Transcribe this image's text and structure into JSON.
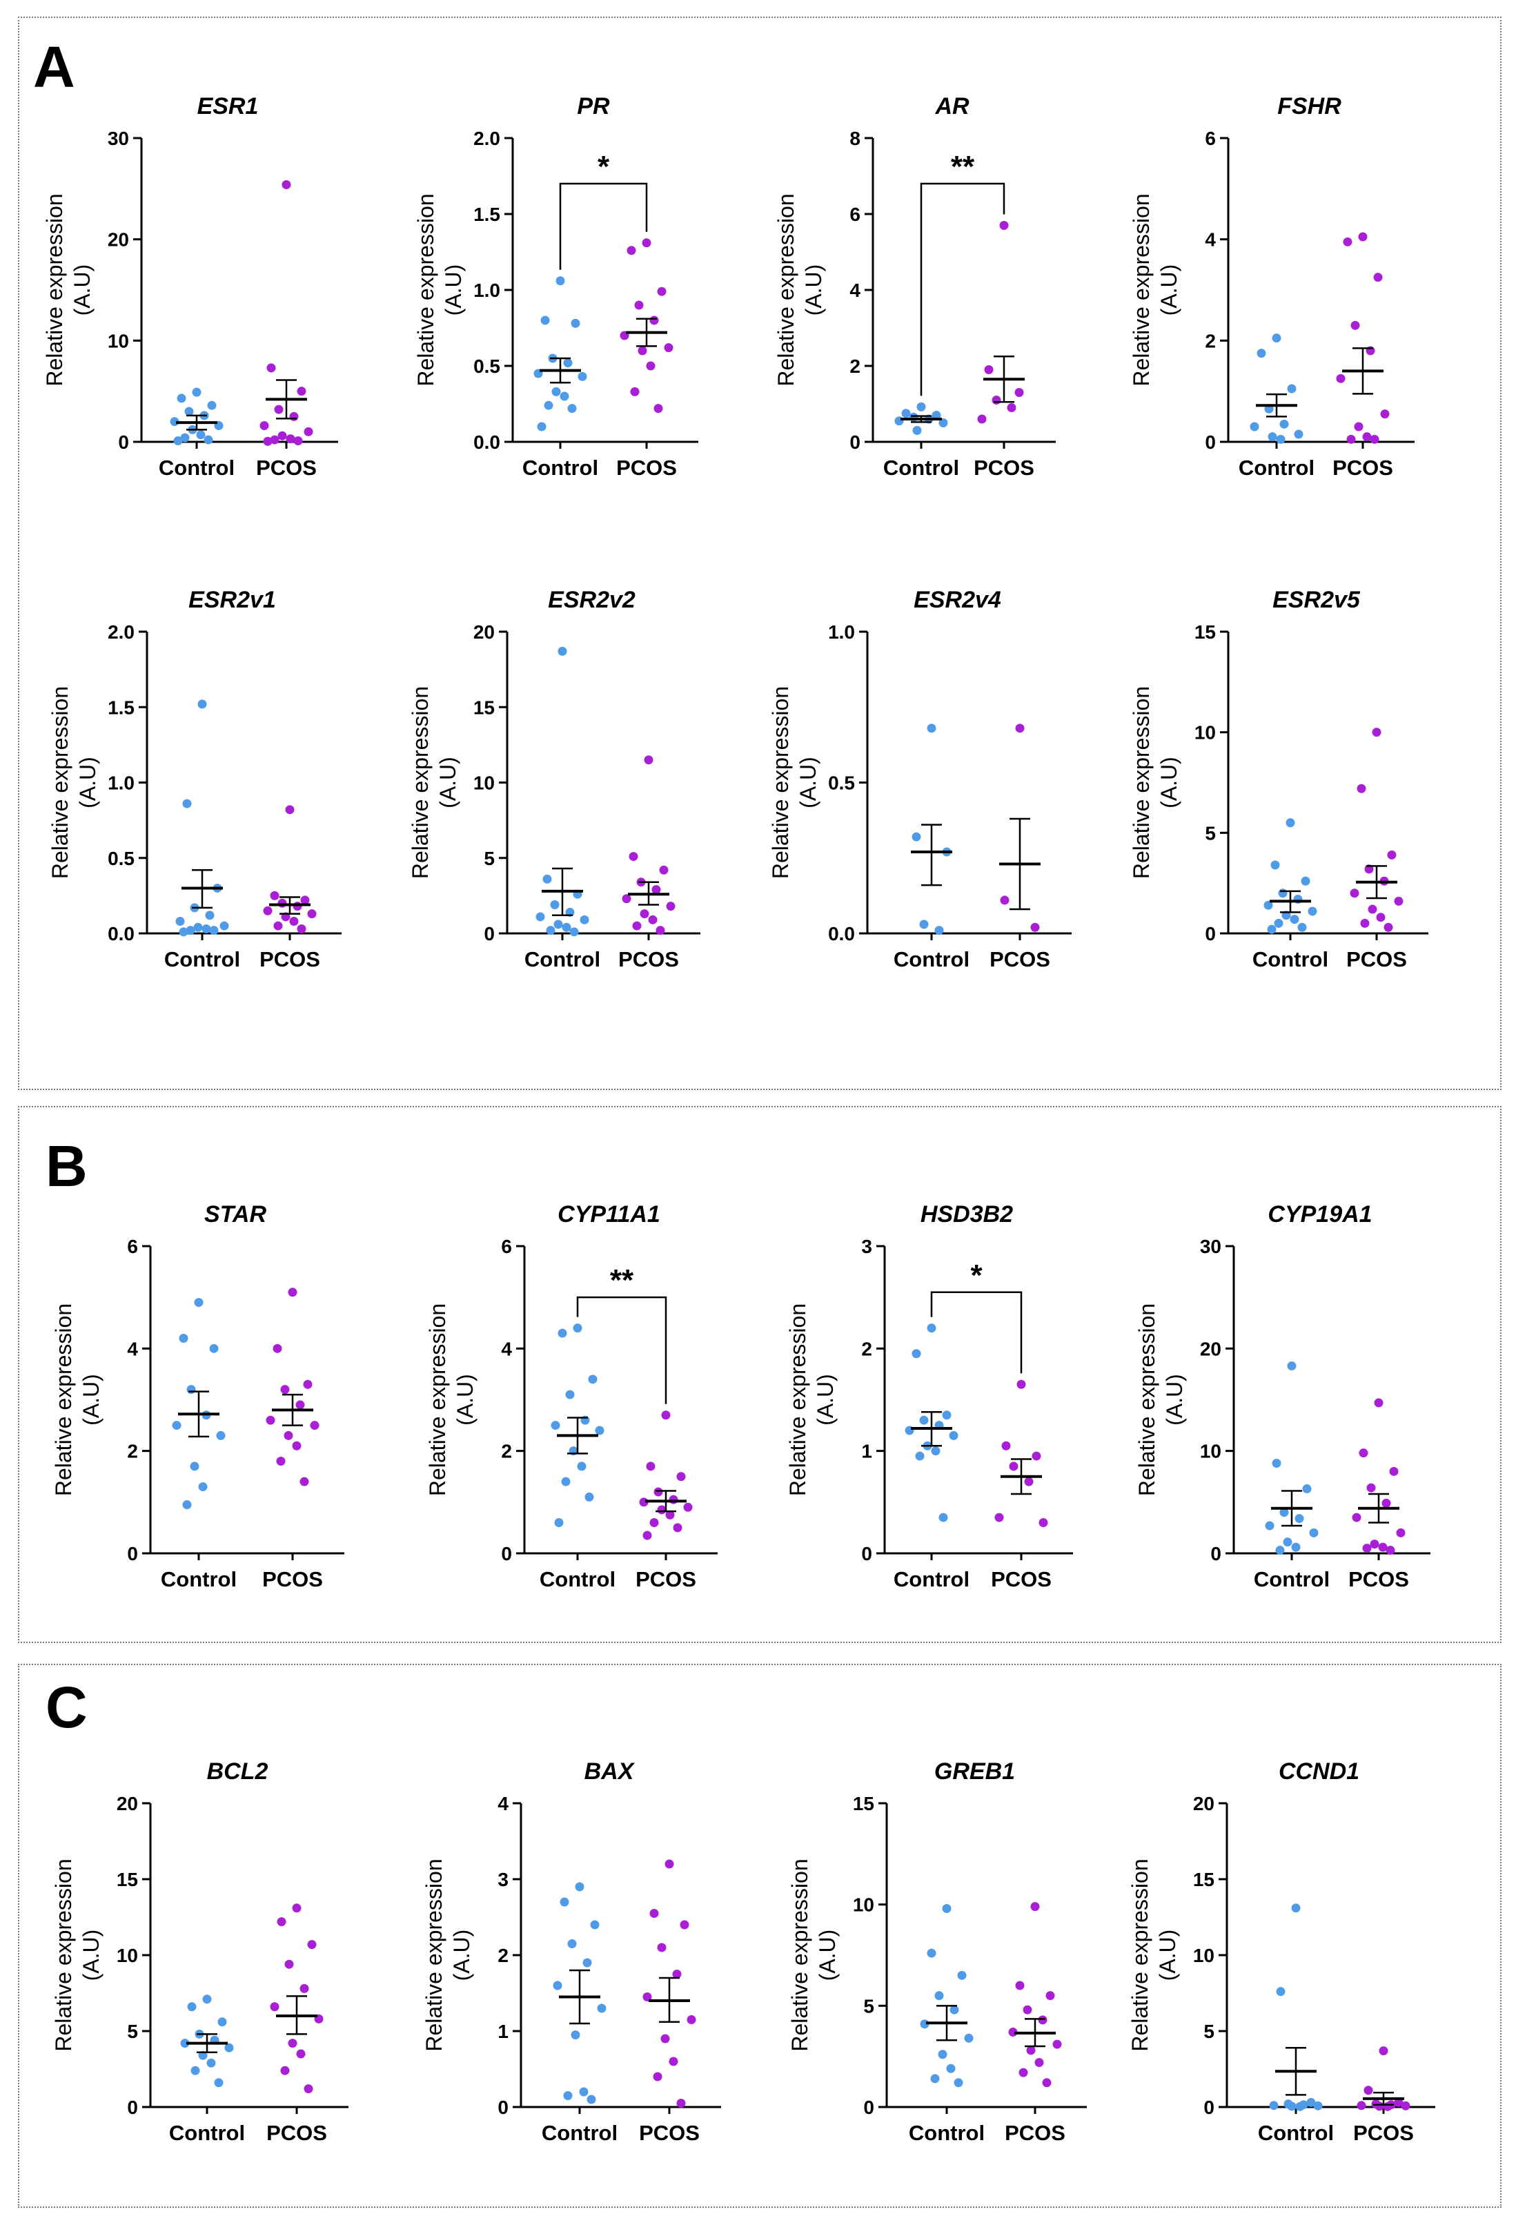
{
  "colors": {
    "control": "#4f9be8",
    "pcos": "#a81fd6",
    "axis": "#000000"
  },
  "y_axis_title_line1": "Relative expression",
  "y_axis_title_line2": "(A.U)",
  "panels": [
    {
      "letter": "A"
    },
    {
      "letter": "B"
    },
    {
      "letter": "C"
    }
  ],
  "chart_data": [
    {
      "type": "scatter",
      "panel": "A",
      "title": "ESR1",
      "categories": [
        "Control",
        "PCOS"
      ],
      "ylim": [
        0,
        30
      ],
      "yticks": [
        0,
        10,
        20,
        30
      ],
      "series": [
        {
          "name": "Control",
          "points": [
            4.9,
            4.3,
            3.6,
            3.0,
            2.6,
            2.0,
            1.6,
            1.2,
            0.7,
            0.4,
            0.2,
            0.1
          ],
          "mean": 1.9,
          "sem_low": 1.2,
          "sem_high": 2.6
        },
        {
          "name": "PCOS",
          "points": [
            25.4,
            7.3,
            5.0,
            3.2,
            2.5,
            1.6,
            1.0,
            0.6,
            0.3,
            0.2,
            0.1,
            0.05
          ],
          "mean": 4.2,
          "sem_low": 2.3,
          "sem_high": 6.1
        }
      ],
      "significance": null
    },
    {
      "type": "scatter",
      "panel": "A",
      "title": "PR",
      "categories": [
        "Control",
        "PCOS"
      ],
      "ylim": [
        0,
        2.0
      ],
      "yticks": [
        "0.0",
        "0.5",
        "1.0",
        "1.5",
        "2.0"
      ],
      "series": [
        {
          "name": "Control",
          "points": [
            1.06,
            0.8,
            0.78,
            0.55,
            0.52,
            0.45,
            0.43,
            0.33,
            0.3,
            0.24,
            0.22,
            0.1
          ],
          "mean": 0.47,
          "sem_low": 0.39,
          "sem_high": 0.55
        },
        {
          "name": "PCOS",
          "points": [
            1.31,
            1.26,
            0.99,
            0.9,
            0.8,
            0.7,
            0.62,
            0.6,
            0.5,
            0.33,
            0.22
          ],
          "mean": 0.72,
          "sem_low": 0.63,
          "sem_high": 0.81
        }
      ],
      "significance": {
        "label": "*",
        "level": 1.7
      }
    },
    {
      "type": "scatter",
      "panel": "A",
      "title": "AR",
      "categories": [
        "Control",
        "PCOS"
      ],
      "ylim": [
        0,
        8
      ],
      "yticks": [
        0,
        2,
        4,
        6,
        8
      ],
      "series": [
        {
          "name": "Control",
          "points": [
            0.92,
            0.75,
            0.7,
            0.65,
            0.6,
            0.55,
            0.5,
            0.3
          ],
          "mean": 0.6,
          "sem_low": 0.52,
          "sem_high": 0.68
        },
        {
          "name": "PCOS",
          "points": [
            5.7,
            1.9,
            1.3,
            1.1,
            0.9,
            0.6
          ],
          "mean": 1.65,
          "sem_low": 1.05,
          "sem_high": 2.25
        }
      ],
      "significance": {
        "label": "**",
        "level": 6.8
      }
    },
    {
      "type": "scatter",
      "panel": "A",
      "title": "FSHR",
      "categories": [
        "Control",
        "PCOS"
      ],
      "ylim": [
        0,
        6
      ],
      "yticks": [
        0,
        2,
        4,
        6
      ],
      "series": [
        {
          "name": "Control",
          "points": [
            2.05,
            1.75,
            1.05,
            0.65,
            0.35,
            0.3,
            0.15,
            0.1,
            0.05
          ],
          "mean": 0.72,
          "sem_low": 0.5,
          "sem_high": 0.94
        },
        {
          "name": "PCOS",
          "points": [
            4.05,
            3.95,
            3.25,
            2.3,
            1.8,
            1.25,
            0.55,
            0.3,
            0.1,
            0.05,
            0.05
          ],
          "mean": 1.4,
          "sem_low": 0.95,
          "sem_high": 1.85
        }
      ],
      "significance": null
    },
    {
      "type": "scatter",
      "panel": "A",
      "title": "ESR2v1",
      "categories": [
        "Control",
        "PCOS"
      ],
      "ylim": [
        0,
        2.0
      ],
      "yticks": [
        "0.0",
        "0.5",
        "1.0",
        "1.5",
        "2.0"
      ],
      "series": [
        {
          "name": "Control",
          "points": [
            1.52,
            0.86,
            0.3,
            0.17,
            0.12,
            0.08,
            0.05,
            0.04,
            0.03,
            0.02,
            0.02,
            0.01
          ],
          "mean": 0.3,
          "sem_low": 0.17,
          "sem_high": 0.42
        },
        {
          "name": "PCOS",
          "points": [
            0.82,
            0.25,
            0.22,
            0.2,
            0.18,
            0.15,
            0.13,
            0.11,
            0.08,
            0.05,
            0.03
          ],
          "mean": 0.19,
          "sem_low": 0.13,
          "sem_high": 0.24
        }
      ],
      "significance": null
    },
    {
      "type": "scatter",
      "panel": "A",
      "title": "ESR2v2",
      "categories": [
        "Control",
        "PCOS"
      ],
      "ylim": [
        0,
        20
      ],
      "yticks": [
        0,
        5,
        10,
        15,
        20
      ],
      "series": [
        {
          "name": "Control",
          "points": [
            18.7,
            3.6,
            2.6,
            1.9,
            1.4,
            1.1,
            0.9,
            0.6,
            0.4,
            0.2,
            0.1
          ],
          "mean": 2.8,
          "sem_low": 1.2,
          "sem_high": 4.3
        },
        {
          "name": "PCOS",
          "points": [
            11.5,
            5.1,
            4.2,
            3.4,
            2.9,
            2.3,
            1.8,
            1.3,
            0.9,
            0.5,
            0.2
          ],
          "mean": 2.6,
          "sem_low": 1.9,
          "sem_high": 3.4
        }
      ],
      "significance": null
    },
    {
      "type": "scatter",
      "panel": "A",
      "title": "ESR2v4",
      "categories": [
        "Control",
        "PCOS"
      ],
      "ylim": [
        0,
        1.0
      ],
      "yticks": [
        "0.0",
        "0.5",
        "1.0"
      ],
      "series": [
        {
          "name": "Control",
          "points": [
            0.68,
            0.32,
            0.27,
            0.03,
            0.01
          ],
          "mean": 0.27,
          "sem_low": 0.16,
          "sem_high": 0.36
        },
        {
          "name": "PCOS",
          "points": [
            0.68,
            0.11,
            0.02
          ],
          "mean": 0.23,
          "sem_low": 0.08,
          "sem_high": 0.38
        }
      ],
      "significance": null
    },
    {
      "type": "scatter",
      "panel": "A",
      "title": "ESR2v5",
      "categories": [
        "Control",
        "PCOS"
      ],
      "ylim": [
        0,
        15
      ],
      "yticks": [
        0,
        5,
        10,
        15
      ],
      "series": [
        {
          "name": "Control",
          "points": [
            5.5,
            3.4,
            2.6,
            2.0,
            1.7,
            1.4,
            1.1,
            0.9,
            0.7,
            0.5,
            0.3,
            0.2
          ],
          "mean": 1.6,
          "sem_low": 1.05,
          "sem_high": 2.1
        },
        {
          "name": "PCOS",
          "points": [
            10.0,
            7.2,
            3.9,
            3.2,
            2.6,
            2.0,
            1.6,
            1.2,
            0.8,
            0.5,
            0.3
          ],
          "mean": 2.55,
          "sem_low": 1.75,
          "sem_high": 3.35
        }
      ],
      "significance": null
    },
    {
      "type": "scatter",
      "panel": "B",
      "title": "STAR",
      "categories": [
        "Control",
        "PCOS"
      ],
      "ylim": [
        0,
        6
      ],
      "yticks": [
        0,
        2,
        4,
        6
      ],
      "series": [
        {
          "name": "Control",
          "points": [
            4.9,
            4.2,
            4.0,
            3.2,
            2.7,
            2.5,
            2.3,
            1.7,
            1.3,
            0.95
          ],
          "mean": 2.72,
          "sem_low": 2.28,
          "sem_high": 3.16
        },
        {
          "name": "PCOS",
          "points": [
            5.1,
            4.0,
            3.3,
            3.2,
            2.9,
            2.6,
            2.5,
            2.3,
            2.1,
            1.8,
            1.4
          ],
          "mean": 2.8,
          "sem_low": 2.5,
          "sem_high": 3.1
        }
      ],
      "significance": null
    },
    {
      "type": "scatter",
      "panel": "B",
      "title": "CYP11A1",
      "categories": [
        "Control",
        "PCOS"
      ],
      "ylim": [
        0,
        6
      ],
      "yticks": [
        0,
        2,
        4,
        6
      ],
      "series": [
        {
          "name": "Control",
          "points": [
            4.4,
            4.3,
            3.4,
            3.1,
            2.6,
            2.5,
            2.4,
            2.0,
            1.7,
            1.4,
            1.1,
            0.6
          ],
          "mean": 2.3,
          "sem_low": 1.95,
          "sem_high": 2.65
        },
        {
          "name": "PCOS",
          "points": [
            2.7,
            1.7,
            1.5,
            1.2,
            1.05,
            1.0,
            0.9,
            0.85,
            0.75,
            0.6,
            0.5,
            0.35
          ],
          "mean": 1.02,
          "sem_low": 0.82,
          "sem_high": 1.22
        }
      ],
      "significance": {
        "label": "**",
        "level": 5.0
      }
    },
    {
      "type": "scatter",
      "panel": "B",
      "title": "HSD3B2",
      "categories": [
        "Control",
        "PCOS"
      ],
      "ylim": [
        0,
        3
      ],
      "yticks": [
        0,
        1,
        2,
        3
      ],
      "series": [
        {
          "name": "Control",
          "points": [
            2.2,
            1.95,
            1.35,
            1.3,
            1.25,
            1.2,
            1.15,
            1.05,
            1.0,
            0.95,
            0.35
          ],
          "mean": 1.22,
          "sem_low": 1.05,
          "sem_high": 1.38
        },
        {
          "name": "PCOS",
          "points": [
            1.65,
            1.05,
            0.95,
            0.85,
            0.7,
            0.35,
            0.3
          ],
          "mean": 0.75,
          "sem_low": 0.58,
          "sem_high": 0.92
        }
      ],
      "significance": {
        "label": "*",
        "level": 2.55
      }
    },
    {
      "type": "scatter",
      "panel": "B",
      "title": "CYP19A1",
      "categories": [
        "Control",
        "PCOS"
      ],
      "ylim": [
        0,
        30
      ],
      "yticks": [
        0,
        10,
        20,
        30
      ],
      "series": [
        {
          "name": "Control",
          "points": [
            18.3,
            8.8,
            6.3,
            4.0,
            3.4,
            2.7,
            2.0,
            1.1,
            0.6,
            0.3
          ],
          "mean": 4.4,
          "sem_low": 2.7,
          "sem_high": 6.1
        },
        {
          "name": "PCOS",
          "points": [
            14.7,
            9.8,
            8.0,
            6.4,
            4.9,
            3.5,
            2.0,
            0.9,
            0.6,
            0.5,
            0.3
          ],
          "mean": 4.4,
          "sem_low": 3.0,
          "sem_high": 5.8
        }
      ],
      "significance": null
    },
    {
      "type": "scatter",
      "panel": "C",
      "title": "BCL2",
      "categories": [
        "Control",
        "PCOS"
      ],
      "ylim": [
        0,
        20
      ],
      "yticks": [
        0,
        5,
        10,
        15,
        20
      ],
      "series": [
        {
          "name": "Control",
          "points": [
            7.1,
            6.6,
            5.6,
            4.8,
            4.4,
            4.2,
            3.9,
            3.4,
            2.9,
            2.4,
            1.6
          ],
          "mean": 4.2,
          "sem_low": 3.6,
          "sem_high": 4.8
        },
        {
          "name": "PCOS",
          "points": [
            13.1,
            12.2,
            10.7,
            9.4,
            7.8,
            6.6,
            5.8,
            4.2,
            3.5,
            2.4,
            1.2
          ],
          "mean": 6.0,
          "sem_low": 4.8,
          "sem_high": 7.3
        }
      ],
      "significance": null
    },
    {
      "type": "scatter",
      "panel": "C",
      "title": "BAX",
      "categories": [
        "Control",
        "PCOS"
      ],
      "ylim": [
        0,
        4
      ],
      "yticks": [
        0,
        1,
        2,
        3,
        4
      ],
      "series": [
        {
          "name": "Control",
          "points": [
            2.9,
            2.7,
            2.4,
            2.15,
            1.9,
            1.6,
            1.3,
            0.95,
            0.2,
            0.15,
            0.1
          ],
          "mean": 1.45,
          "sem_low": 1.1,
          "sem_high": 1.8
        },
        {
          "name": "PCOS",
          "points": [
            3.2,
            2.55,
            2.4,
            2.1,
            1.75,
            1.45,
            1.15,
            0.9,
            0.6,
            0.4,
            0.05
          ],
          "mean": 1.4,
          "sem_low": 1.12,
          "sem_high": 1.7
        }
      ],
      "significance": null
    },
    {
      "type": "scatter",
      "panel": "C",
      "title": "GREB1",
      "categories": [
        "Control",
        "PCOS"
      ],
      "ylim": [
        0,
        15
      ],
      "yticks": [
        0,
        5,
        10,
        15
      ],
      "series": [
        {
          "name": "Control",
          "points": [
            9.8,
            7.6,
            6.5,
            5.5,
            4.8,
            4.1,
            3.4,
            2.6,
            1.9,
            1.4,
            1.2
          ],
          "mean": 4.15,
          "sem_low": 3.3,
          "sem_high": 5.0
        },
        {
          "name": "PCOS",
          "points": [
            9.9,
            6.0,
            5.5,
            4.8,
            4.3,
            3.7,
            3.1,
            2.8,
            2.2,
            1.7,
            1.2
          ],
          "mean": 3.65,
          "sem_low": 3.0,
          "sem_high": 4.35
        }
      ],
      "significance": null
    },
    {
      "type": "scatter",
      "panel": "C",
      "title": "CCND1",
      "categories": [
        "Control",
        "PCOS"
      ],
      "ylim": [
        0,
        20
      ],
      "yticks": [
        0,
        5,
        10,
        15,
        20
      ],
      "series": [
        {
          "name": "Control",
          "points": [
            13.1,
            7.6,
            0.3,
            0.2,
            0.15,
            0.1,
            0.08,
            0.05,
            0.03
          ],
          "mean": 2.35,
          "sem_low": 0.8,
          "sem_high": 3.9
        },
        {
          "name": "PCOS",
          "points": [
            3.7,
            1.1,
            0.3,
            0.2,
            0.15,
            0.1,
            0.08,
            0.05,
            0.03
          ],
          "mean": 0.55,
          "sem_low": 0.15,
          "sem_high": 0.95
        }
      ],
      "significance": null
    }
  ]
}
